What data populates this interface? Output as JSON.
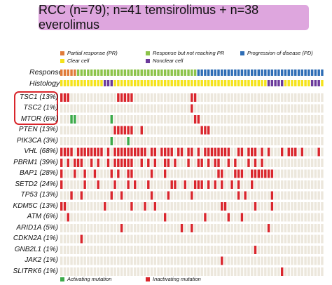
{
  "chart_data": {
    "type": "heatmap",
    "title": "RCC (n=79); n=41 temsirolimus + n=38 everolimus",
    "n_samples": 79,
    "response_legend": [
      {
        "label": "Partial response (PR)",
        "color": "#e07b39"
      },
      {
        "label": "Response but not reaching PR",
        "color": "#8cc34a"
      },
      {
        "label": "Progression of disease (PD)",
        "color": "#2e6db5"
      }
    ],
    "histology_legend": [
      {
        "label": "Clear cell",
        "color": "#f5e31a"
      },
      {
        "label": "Nonclear cell",
        "color": "#6b3a9b"
      }
    ],
    "mutation_legend": [
      {
        "label": "Activating mutation",
        "color": "#3daa4a"
      },
      {
        "label": "Inactivating mutation",
        "color": "#d9262c"
      }
    ],
    "annotation_rows": [
      "Response",
      "Histology"
    ],
    "response_runs": [
      [
        "PR",
        5
      ],
      [
        "SD",
        36
      ],
      [
        "PD",
        38
      ]
    ],
    "histology_nonclear_samples": [
      13,
      14,
      15,
      62,
      63,
      64,
      65,
      66,
      75,
      76,
      77
    ],
    "genes": [
      {
        "label": "TSC1 (13%)",
        "highlight": true,
        "samples": [
          0,
          1,
          2,
          17,
          18,
          19,
          20,
          21,
          39,
          40
        ]
      },
      {
        "label": "TSC2 (1%)",
        "highlight": true,
        "samples": [
          39
        ]
      },
      {
        "label": "MTOR (6%)",
        "highlight": true,
        "samples": [
          3,
          4,
          15
        ],
        "activating": [
          3,
          4,
          15
        ],
        "extra_inactivating": [
          40,
          41
        ]
      },
      {
        "label": "PTEN (13%)",
        "samples": [
          16,
          17,
          18,
          19,
          20,
          21,
          24,
          42,
          43,
          44
        ]
      },
      {
        "label": "PIK3CA (3%)",
        "samples": [
          15,
          20
        ],
        "activating": [
          15,
          20
        ]
      },
      {
        "label": "VHL (68%)",
        "samples": [
          0,
          1,
          2,
          3,
          5,
          6,
          7,
          8,
          9,
          10,
          11,
          12,
          14,
          16,
          17,
          18,
          19,
          20,
          21,
          22,
          23,
          24,
          25,
          27,
          28,
          30,
          31,
          32,
          33,
          35,
          36,
          38,
          39,
          41,
          43,
          44,
          45,
          46,
          47,
          48,
          49,
          50,
          53,
          54,
          56,
          57,
          58,
          60,
          62,
          66,
          68,
          69,
          70,
          72,
          77
        ]
      },
      {
        "label": "PBRM1 (39%)",
        "samples": [
          0,
          2,
          4,
          5,
          6,
          9,
          11,
          14,
          16,
          17,
          18,
          19,
          20,
          21,
          24,
          26,
          28,
          31,
          32,
          34,
          38,
          41,
          42,
          44,
          46,
          47,
          50,
          52,
          56,
          58,
          60
        ]
      },
      {
        "label": "BAP1 (28%)",
        "samples": [
          0,
          4,
          7,
          10,
          15,
          17,
          20,
          21,
          27,
          31,
          47,
          48,
          52,
          53,
          54,
          57,
          58,
          59,
          60,
          61,
          62,
          63
        ]
      },
      {
        "label": "SETD2 (24%)",
        "samples": [
          0,
          7,
          11,
          16,
          20,
          22,
          26,
          33,
          34,
          37,
          40,
          41,
          42,
          44,
          46,
          48,
          51,
          53,
          57
        ]
      },
      {
        "label": "TP53 (13%)",
        "samples": [
          3,
          6,
          15,
          18,
          27,
          32,
          39,
          53,
          55,
          63
        ]
      },
      {
        "label": "KDM5C (13%)",
        "samples": [
          0,
          1,
          13,
          21,
          25,
          28,
          48,
          49,
          58,
          63
        ]
      },
      {
        "label": "ATM (6%)",
        "samples": [
          2,
          31,
          43,
          50,
          54
        ]
      },
      {
        "label": "ARID1A (5%)",
        "samples": [
          18,
          36,
          39,
          62
        ]
      },
      {
        "label": "CDKN2A (1%)",
        "samples": [
          6
        ]
      },
      {
        "label": "GNB2L1 (1%)",
        "samples": [
          58
        ]
      },
      {
        "label": "JAK2 (1%)",
        "samples": [
          48
        ]
      },
      {
        "label": "SLITRK6 (1%)",
        "samples": [
          66
        ]
      }
    ]
  }
}
